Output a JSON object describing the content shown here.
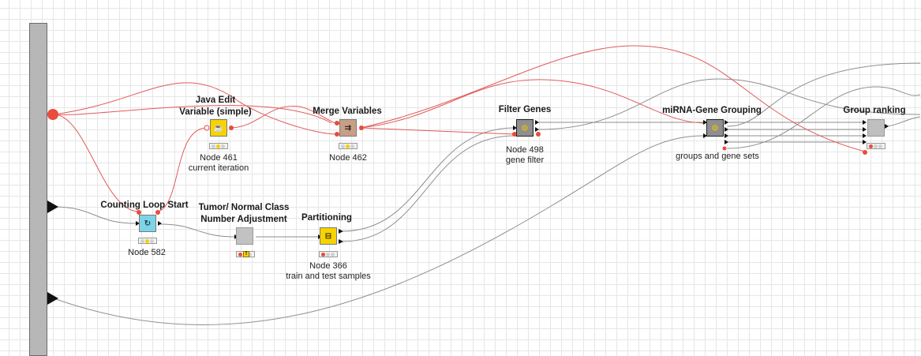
{
  "workflow": {
    "nodes": [
      {
        "id": "java-edit-variable",
        "title": "Java Edit\nVariable (simple)",
        "label": "Node 461\ncurrent iteration",
        "icon": "java-snippet-icon",
        "color": "#f7d300",
        "status": [
          "off",
          "yellow",
          "off"
        ]
      },
      {
        "id": "merge-variables",
        "title": "Merge Variables",
        "label": "Node 462",
        "icon": "merge-variables-icon",
        "color": "#c79f86",
        "status": [
          "off",
          "yellow",
          "off"
        ]
      },
      {
        "id": "filter-genes",
        "title": "Filter Genes",
        "label": "Node 498\ngene filter",
        "icon": "metanode-icon",
        "color": "#8f8f8f",
        "status": []
      },
      {
        "id": "mirna-gene-grouping",
        "title": "miRNA-Gene Grouping",
        "label": "groups and gene sets",
        "icon": "metanode-icon",
        "color": "#8f8f8f",
        "status": []
      },
      {
        "id": "group-ranking",
        "title": "Group ranking",
        "label": "",
        "icon": "metanode-icon",
        "color": "#bfbfbf",
        "status": [
          "red",
          "off",
          "off"
        ]
      },
      {
        "id": "counting-loop-start",
        "title": "Counting Loop Start",
        "label": "Node 582",
        "icon": "loop-start-icon",
        "color": "#7fd3e6",
        "status": [
          "off",
          "yellow",
          "off"
        ]
      },
      {
        "id": "tumor-normal-adjustment",
        "title": "Tumor/ Normal Class\nNumber Adjustment",
        "label": "",
        "icon": "metanode-icon",
        "color": "#c2c2c2",
        "status": [
          "red",
          "off",
          "off"
        ],
        "warning": "!"
      },
      {
        "id": "partitioning",
        "title": "Partitioning",
        "label": "Node 366\ntrain and test samples",
        "icon": "partitioning-icon",
        "color": "#f7d300",
        "status": [
          "red",
          "off",
          "off"
        ]
      }
    ]
  }
}
